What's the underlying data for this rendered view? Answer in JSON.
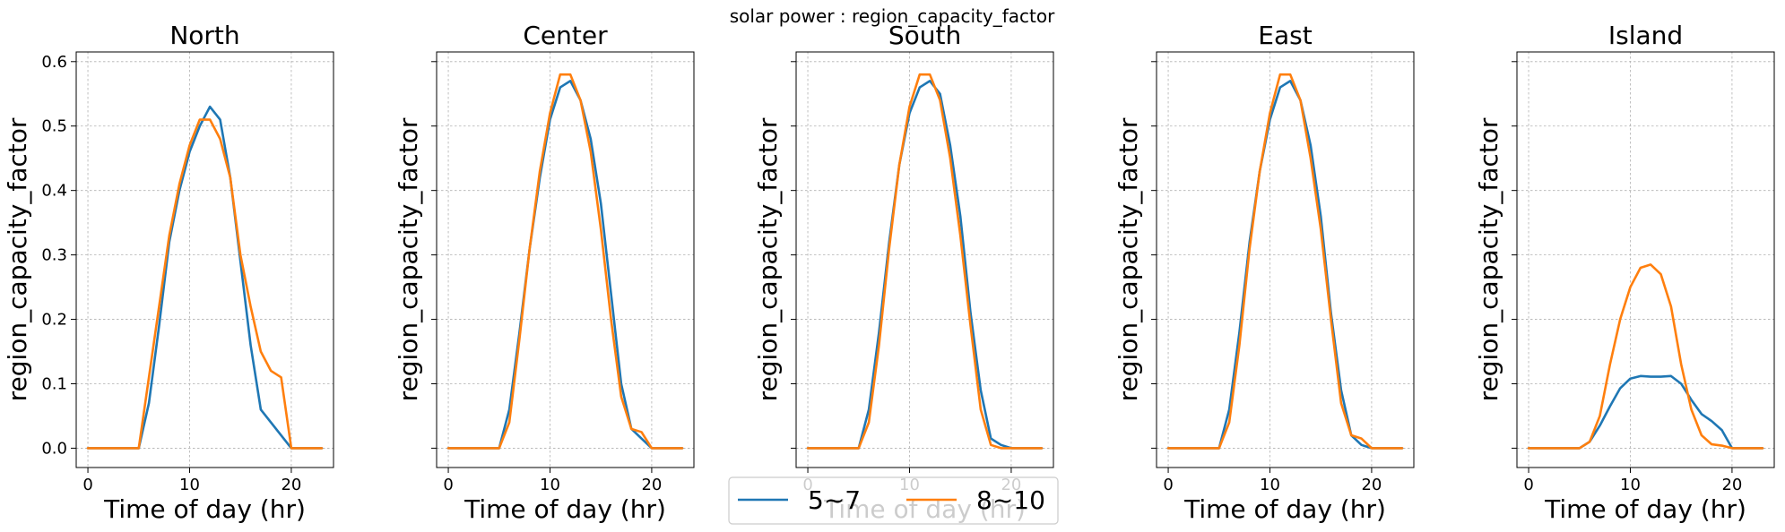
{
  "figure_title": "solar power : region_capacity_factor",
  "chart_data": [
    {
      "type": "line",
      "title": "North",
      "xlabel": "Time of day (hr)",
      "ylabel": "region_capacity_factor",
      "xlim": [
        -1.15,
        24.15
      ],
      "ylim": [
        -0.03,
        0.615
      ],
      "xticks": [
        0,
        10,
        20
      ],
      "yticks": [
        0.0,
        0.1,
        0.2,
        0.3,
        0.4,
        0.5,
        0.6
      ],
      "ytick_labels": [
        "0.0",
        "0.1",
        "0.2",
        "0.3",
        "0.4",
        "0.5",
        "0.6"
      ],
      "grid": true,
      "x": [
        0,
        1,
        2,
        3,
        4,
        5,
        6,
        7,
        8,
        9,
        10,
        11,
        12,
        13,
        14,
        15,
        16,
        17,
        18,
        19,
        20,
        21,
        22,
        23
      ],
      "series": [
        {
          "name": "5~7",
          "color": "#1f77b4",
          "values": [
            0,
            0,
            0,
            0,
            0,
            0,
            0.07,
            0.19,
            0.32,
            0.4,
            0.46,
            0.5,
            0.53,
            0.51,
            0.42,
            0.29,
            0.16,
            0.06,
            0.04,
            0.02,
            0,
            0,
            0,
            0
          ]
        },
        {
          "name": "8~10",
          "color": "#ff7f0e",
          "values": [
            0,
            0,
            0,
            0,
            0,
            0,
            0.11,
            0.22,
            0.33,
            0.41,
            0.47,
            0.51,
            0.51,
            0.48,
            0.42,
            0.3,
            0.22,
            0.15,
            0.12,
            0.11,
            0,
            0,
            0,
            0
          ]
        }
      ]
    },
    {
      "type": "line",
      "title": "Center",
      "xlabel": "Time of day (hr)",
      "ylabel": "region_capacity_factor",
      "xlim": [
        -1.15,
        24.15
      ],
      "ylim": [
        -0.03,
        0.615
      ],
      "xticks": [
        0,
        10,
        20
      ],
      "yticks": [
        0.0,
        0.1,
        0.2,
        0.3,
        0.4,
        0.5,
        0.6
      ],
      "ytick_labels": [
        "",
        "",
        "",
        "",
        "",
        "",
        ""
      ],
      "grid": true,
      "x": [
        0,
        1,
        2,
        3,
        4,
        5,
        6,
        7,
        8,
        9,
        10,
        11,
        12,
        13,
        14,
        15,
        16,
        17,
        18,
        19,
        20,
        21,
        22,
        23
      ],
      "series": [
        {
          "name": "5~7",
          "color": "#1f77b4",
          "values": [
            0,
            0,
            0,
            0,
            0,
            0,
            0.06,
            0.18,
            0.31,
            0.42,
            0.51,
            0.56,
            0.57,
            0.54,
            0.48,
            0.38,
            0.24,
            0.1,
            0.03,
            0.015,
            0,
            0,
            0,
            0
          ]
        },
        {
          "name": "8~10",
          "color": "#ff7f0e",
          "values": [
            0,
            0,
            0,
            0,
            0,
            0,
            0.04,
            0.17,
            0.31,
            0.43,
            0.52,
            0.58,
            0.58,
            0.54,
            0.46,
            0.34,
            0.2,
            0.08,
            0.03,
            0.025,
            0,
            0,
            0,
            0
          ]
        }
      ]
    },
    {
      "type": "line",
      "title": "South",
      "xlabel": "Time of day (hr)",
      "ylabel": "region_capacity_factor",
      "xlim": [
        -1.15,
        24.15
      ],
      "ylim": [
        -0.03,
        0.615
      ],
      "xticks": [
        0,
        10,
        20
      ],
      "yticks": [
        0.0,
        0.1,
        0.2,
        0.3,
        0.4,
        0.5,
        0.6
      ],
      "ytick_labels": [
        "",
        "",
        "",
        "",
        "",
        "",
        ""
      ],
      "grid": true,
      "x": [
        0,
        1,
        2,
        3,
        4,
        5,
        6,
        7,
        8,
        9,
        10,
        11,
        12,
        13,
        14,
        15,
        16,
        17,
        18,
        19,
        20,
        21,
        22,
        23
      ],
      "series": [
        {
          "name": "5~7",
          "color": "#1f77b4",
          "values": [
            0,
            0,
            0,
            0,
            0,
            0,
            0.06,
            0.18,
            0.32,
            0.44,
            0.52,
            0.56,
            0.57,
            0.55,
            0.47,
            0.36,
            0.21,
            0.09,
            0.015,
            0.005,
            0,
            0,
            0,
            0
          ]
        },
        {
          "name": "8~10",
          "color": "#ff7f0e",
          "values": [
            0,
            0,
            0,
            0,
            0,
            0,
            0.04,
            0.16,
            0.31,
            0.44,
            0.53,
            0.58,
            0.58,
            0.54,
            0.45,
            0.33,
            0.19,
            0.06,
            0.005,
            0,
            0,
            0,
            0,
            0
          ]
        }
      ]
    },
    {
      "type": "line",
      "title": "East",
      "xlabel": "Time of day (hr)",
      "ylabel": "region_capacity_factor",
      "xlim": [
        -1.15,
        24.15
      ],
      "ylim": [
        -0.03,
        0.615
      ],
      "xticks": [
        0,
        10,
        20
      ],
      "yticks": [
        0.0,
        0.1,
        0.2,
        0.3,
        0.4,
        0.5,
        0.6
      ],
      "ytick_labels": [
        "",
        "",
        "",
        "",
        "",
        "",
        ""
      ],
      "grid": true,
      "x": [
        0,
        1,
        2,
        3,
        4,
        5,
        6,
        7,
        8,
        9,
        10,
        11,
        12,
        13,
        14,
        15,
        16,
        17,
        18,
        19,
        20,
        21,
        22,
        23
      ],
      "series": [
        {
          "name": "5~7",
          "color": "#1f77b4",
          "values": [
            0,
            0,
            0,
            0,
            0,
            0,
            0.06,
            0.18,
            0.32,
            0.43,
            0.51,
            0.56,
            0.57,
            0.54,
            0.47,
            0.36,
            0.21,
            0.09,
            0.02,
            0.005,
            0,
            0,
            0,
            0
          ]
        },
        {
          "name": "8~10",
          "color": "#ff7f0e",
          "values": [
            0,
            0,
            0,
            0,
            0,
            0,
            0.04,
            0.16,
            0.31,
            0.43,
            0.52,
            0.58,
            0.58,
            0.54,
            0.45,
            0.34,
            0.2,
            0.07,
            0.02,
            0.015,
            0,
            0,
            0,
            0
          ]
        }
      ]
    },
    {
      "type": "line",
      "title": "Island",
      "xlabel": "Time of day (hr)",
      "ylabel": "region_capacity_factor",
      "xlim": [
        -1.15,
        24.15
      ],
      "ylim": [
        -0.03,
        0.615
      ],
      "xticks": [
        0,
        10,
        20
      ],
      "yticks": [
        0.0,
        0.1,
        0.2,
        0.3,
        0.4,
        0.5,
        0.6
      ],
      "ytick_labels": [
        "",
        "",
        "",
        "",
        "",
        "",
        ""
      ],
      "grid": true,
      "x": [
        0,
        1,
        2,
        3,
        4,
        5,
        6,
        7,
        8,
        9,
        10,
        11,
        12,
        13,
        14,
        15,
        16,
        17,
        18,
        19,
        20,
        21,
        22,
        23
      ],
      "series": [
        {
          "name": "5~7",
          "color": "#1f77b4",
          "values": [
            0,
            0,
            0,
            0,
            0,
            0,
            0.01,
            0.035,
            0.065,
            0.093,
            0.108,
            0.112,
            0.111,
            0.111,
            0.112,
            0.1,
            0.075,
            0.053,
            0.042,
            0.028,
            0,
            0,
            0,
            0
          ]
        },
        {
          "name": "8~10",
          "color": "#ff7f0e",
          "values": [
            0,
            0,
            0,
            0,
            0,
            0,
            0.01,
            0.05,
            0.13,
            0.2,
            0.25,
            0.28,
            0.285,
            0.27,
            0.22,
            0.13,
            0.06,
            0.02,
            0.006,
            0.004,
            0,
            0,
            0,
            0
          ]
        }
      ]
    }
  ],
  "legend": {
    "location": "bottom-center",
    "entries": [
      {
        "label": "5~7",
        "color": "#1f77b4"
      },
      {
        "label": "8~10",
        "color": "#ff7f0e"
      }
    ]
  }
}
